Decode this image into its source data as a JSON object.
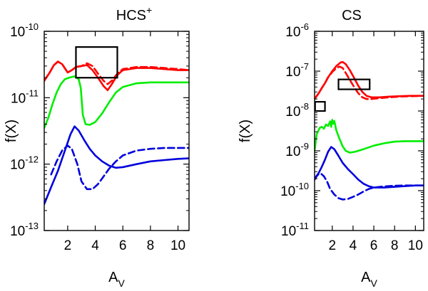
{
  "chart_data": [
    {
      "type": "line",
      "title": "HCS",
      "title_superscript": "+",
      "xlabel": "A",
      "xlabel_subscript": "V",
      "ylabel": "f(X)",
      "yscale": "log",
      "ylim": [
        1e-13,
        1e-10
      ],
      "xlim": [
        0.3,
        10.8
      ],
      "xticks": [
        2,
        4,
        6,
        8,
        10
      ],
      "xtick_labels": [
        "2",
        "4",
        "6",
        "8",
        "10"
      ],
      "yticks": [
        1e-13,
        1e-12,
        1e-11,
        1e-10
      ],
      "ytick_bases": [
        "10",
        "10",
        "10",
        "10"
      ],
      "ytick_exponents": [
        "-13",
        "-12",
        "-11",
        "-10"
      ],
      "series": [
        {
          "name": "red-solid",
          "color": "#ff0000",
          "dash": "solid",
          "x": [
            0.3,
            0.7,
            1.0,
            1.3,
            1.6,
            2.0,
            2.3,
            2.6,
            3.0,
            3.4,
            3.8,
            4.2,
            4.6,
            4.9,
            5.2,
            5.6,
            6.0,
            7.0,
            8.0,
            9.0,
            10.0,
            10.8
          ],
          "y": [
            1.8e-11,
            2.4e-11,
            3.1e-11,
            3.5e-11,
            3.2e-11,
            2.4e-11,
            2.6e-11,
            2.9e-11,
            3e-11,
            3.1e-11,
            2.6e-11,
            2e-11,
            1.5e-11,
            1.3e-11,
            1.6e-11,
            2.2e-11,
            2.6e-11,
            2.8e-11,
            2.8e-11,
            2.7e-11,
            2.6e-11,
            2.6e-11
          ]
        },
        {
          "name": "red-dashed",
          "color": "#ff0000",
          "dash": "dashed",
          "x": [
            0.3,
            0.7,
            1.0,
            1.3,
            1.6,
            2.0,
            2.3,
            2.6,
            3.0,
            3.4,
            3.8,
            4.2,
            4.6,
            4.9,
            5.2,
            5.6,
            6.0,
            7.0,
            8.0,
            9.0,
            10.0,
            10.8
          ],
          "y": [
            1.8e-11,
            2.4e-11,
            3.1e-11,
            3.5e-11,
            3.2e-11,
            2.4e-11,
            2.6e-11,
            2.9e-11,
            3e-11,
            3.3e-11,
            3e-11,
            2.3e-11,
            1.8e-11,
            1.6e-11,
            1.8e-11,
            2.3e-11,
            2.7e-11,
            2.9e-11,
            2.9e-11,
            2.8e-11,
            2.7e-11,
            2.6e-11
          ]
        },
        {
          "name": "green-solid",
          "color": "#00ee00",
          "dash": "solid",
          "x": [
            0.3,
            0.6,
            0.9,
            1.2,
            1.5,
            1.8,
            2.1,
            2.5,
            2.8,
            2.95,
            3.1,
            3.3,
            3.6,
            4.0,
            4.5,
            5.0,
            5.5,
            6.0,
            7.0,
            8.0,
            9.0,
            10.0,
            10.8
          ],
          "y": [
            3.5e-12,
            5e-12,
            8e-12,
            1.2e-11,
            1.6e-11,
            1.9e-11,
            2e-11,
            2.1e-11,
            1.9e-11,
            1.4e-11,
            5.5e-12,
            4e-12,
            3.9e-12,
            4.3e-12,
            5.8e-12,
            8.5e-12,
            1.2e-11,
            1.45e-11,
            1.65e-11,
            1.7e-11,
            1.7e-11,
            1.7e-11,
            1.7e-11
          ]
        },
        {
          "name": "blue-solid",
          "color": "#0000dd",
          "dash": "solid",
          "x": [
            0.3,
            0.8,
            1.3,
            1.8,
            2.2,
            2.5,
            2.8,
            3.2,
            3.6,
            4.0,
            4.5,
            5.0,
            5.5,
            6.0,
            7.0,
            8.0,
            9.0,
            10.0,
            10.8
          ],
          "y": [
            2.5e-13,
            4.5e-13,
            8e-13,
            1.6e-12,
            2.8e-12,
            3.7e-12,
            3.2e-12,
            2.3e-12,
            1.7e-12,
            1.35e-12,
            1.1e-12,
            9.5e-13,
            8.8e-13,
            9e-13,
            1e-12,
            1.1e-12,
            1.15e-12,
            1.2e-12,
            1.22e-12
          ]
        },
        {
          "name": "blue-dashed",
          "color": "#0000dd",
          "dash": "dashed",
          "x": [
            0.8,
            1.2,
            1.6,
            2.0,
            2.3,
            2.7,
            3.0,
            3.4,
            3.8,
            4.2,
            4.6,
            5.0,
            5.5,
            6.0,
            7.0,
            8.0,
            9.0,
            10.0,
            10.8
          ],
          "y": [
            7e-13,
            1.1e-12,
            1.6e-12,
            1.9e-12,
            1.7e-12,
            1e-12,
            5.5e-13,
            4.2e-13,
            4.2e-13,
            5e-13,
            6.5e-13,
            8.5e-13,
            1.1e-12,
            1.35e-12,
            1.6e-12,
            1.7e-12,
            1.75e-12,
            1.75e-12,
            1.75e-12
          ]
        }
      ],
      "annotations": [
        {
          "type": "rectangle",
          "x0": 2.6,
          "x1": 5.6,
          "y0": 2e-11,
          "y1": 5.8e-11
        }
      ]
    },
    {
      "type": "line",
      "title": "CS",
      "xlabel": "A",
      "xlabel_subscript": "V",
      "ylabel": "f(X)",
      "yscale": "log",
      "ylim": [
        1e-11,
        1e-06
      ],
      "xlim": [
        0.3,
        10.8
      ],
      "xticks": [
        2,
        4,
        6,
        8,
        10
      ],
      "xtick_labels": [
        "2",
        "4",
        "6",
        "8",
        "10"
      ],
      "yticks": [
        1e-11,
        1e-10,
        1e-09,
        1e-08,
        1e-07,
        1e-06
      ],
      "ytick_bases": [
        "10",
        "10",
        "10",
        "10",
        "10",
        "10"
      ],
      "ytick_exponents": [
        "-11",
        "-10",
        "-9",
        "-8",
        "-7",
        "-6"
      ],
      "series": [
        {
          "name": "red-solid",
          "color": "#ff0000",
          "dash": "solid",
          "x": [
            0.3,
            0.7,
            1.0,
            1.3,
            1.6,
            2.0,
            2.4,
            2.8,
            3.0,
            3.3,
            3.7,
            4.1,
            4.5,
            4.9,
            5.3,
            5.8,
            6.5,
            7.5,
            8.5,
            9.5,
            10.8
          ],
          "y": [
            2e-08,
            2.8e-08,
            3.8e-08,
            5e-08,
            7e-08,
            1e-07,
            1.35e-07,
            1.65e-07,
            1.7e-07,
            1.5e-07,
            1.05e-07,
            6.8e-08,
            4.3e-08,
            3e-08,
            2.4e-08,
            2.2e-08,
            2.2e-08,
            2.3e-08,
            2.35e-08,
            2.4e-08,
            2.4e-08
          ]
        },
        {
          "name": "red-dashed",
          "color": "#ff0000",
          "dash": "dashed",
          "x": [
            0.3,
            0.7,
            1.0,
            1.3,
            1.6,
            2.0,
            2.4,
            2.7,
            3.0,
            3.3,
            3.7,
            4.1,
            4.5,
            4.9,
            5.3,
            5.8,
            6.5,
            7.5,
            8.5,
            9.5,
            10.8
          ],
          "y": [
            2e-08,
            2.8e-08,
            3.8e-08,
            5e-08,
            7e-08,
            9.5e-08,
            1.2e-07,
            1.3e-07,
            1.2e-07,
            9e-08,
            6e-08,
            4e-08,
            2.8e-08,
            2.2e-08,
            2e-08,
            2e-08,
            2.1e-08,
            2.2e-08,
            2.3e-08,
            2.35e-08,
            2.4e-08
          ]
        },
        {
          "name": "green-solid",
          "color": "#00ee00",
          "dash": "solid",
          "x": [
            0.3,
            0.5,
            0.8,
            1.0,
            1.2,
            1.4,
            1.6,
            1.8,
            1.9,
            2.0,
            2.1,
            2.2,
            2.4,
            2.7,
            3.0,
            3.3,
            3.7,
            4.2,
            5.0,
            6.0,
            7.0,
            8.0,
            9.0,
            10.0,
            10.8
          ],
          "y": [
            1e-09,
            2.6e-09,
            3.8e-09,
            4e-09,
            3.6e-09,
            4.6e-09,
            4.2e-09,
            5.5e-09,
            4e-09,
            6e-09,
            4.8e-09,
            5.6e-09,
            3.2e-09,
            2e-09,
            1.3e-09,
            1e-09,
            9e-10,
            9.5e-10,
            1.1e-09,
            1.35e-09,
            1.55e-09,
            1.7e-09,
            1.75e-09,
            1.75e-09,
            1.75e-09
          ]
        },
        {
          "name": "blue-solid",
          "color": "#0000dd",
          "dash": "solid",
          "x": [
            0.3,
            0.7,
            1.0,
            1.3,
            1.6,
            1.9,
            2.2,
            2.6,
            3.0,
            3.5,
            4.0,
            4.5,
            5.0,
            5.5,
            6.0,
            7.0,
            8.0,
            9.0,
            10.0,
            10.8
          ],
          "y": [
            2e-10,
            2.8e-10,
            4e-10,
            6e-10,
            9.5e-10,
            1.25e-09,
            1.1e-09,
            7.5e-10,
            5e-10,
            3.5e-10,
            2.6e-10,
            1.9e-10,
            1.5e-10,
            1.3e-10,
            1.2e-10,
            1.2e-10,
            1.25e-10,
            1.3e-10,
            1.35e-10,
            1.35e-10
          ]
        },
        {
          "name": "blue-dashed",
          "color": "#0000dd",
          "dash": "dashed",
          "x": [
            0.3,
            0.6,
            0.9,
            1.2,
            1.5,
            1.8,
            2.2,
            2.6,
            3.0,
            3.5,
            4.0,
            4.5,
            5.0,
            5.5,
            6.0,
            7.0,
            8.0,
            9.0,
            10.0,
            10.8
          ],
          "y": [
            1.9e-10,
            2.5e-10,
            2.7e-10,
            2.3e-10,
            1.7e-10,
            1.1e-10,
            8e-11,
            6.5e-11,
            6e-11,
            6.2e-11,
            7e-11,
            8e-11,
            9.5e-11,
            1.1e-10,
            1.2e-10,
            1.28e-10,
            1.33e-10,
            1.35e-10,
            1.35e-10,
            1.35e-10
          ]
        }
      ],
      "annotations": [
        {
          "type": "rectangle",
          "x0": 2.6,
          "x1": 5.6,
          "y0": 3.5e-08,
          "y1": 6.2e-08
        },
        {
          "type": "rectangle",
          "x0": 0.35,
          "x1": 1.3,
          "y0": 1e-08,
          "y1": 1.7e-08
        }
      ]
    }
  ]
}
